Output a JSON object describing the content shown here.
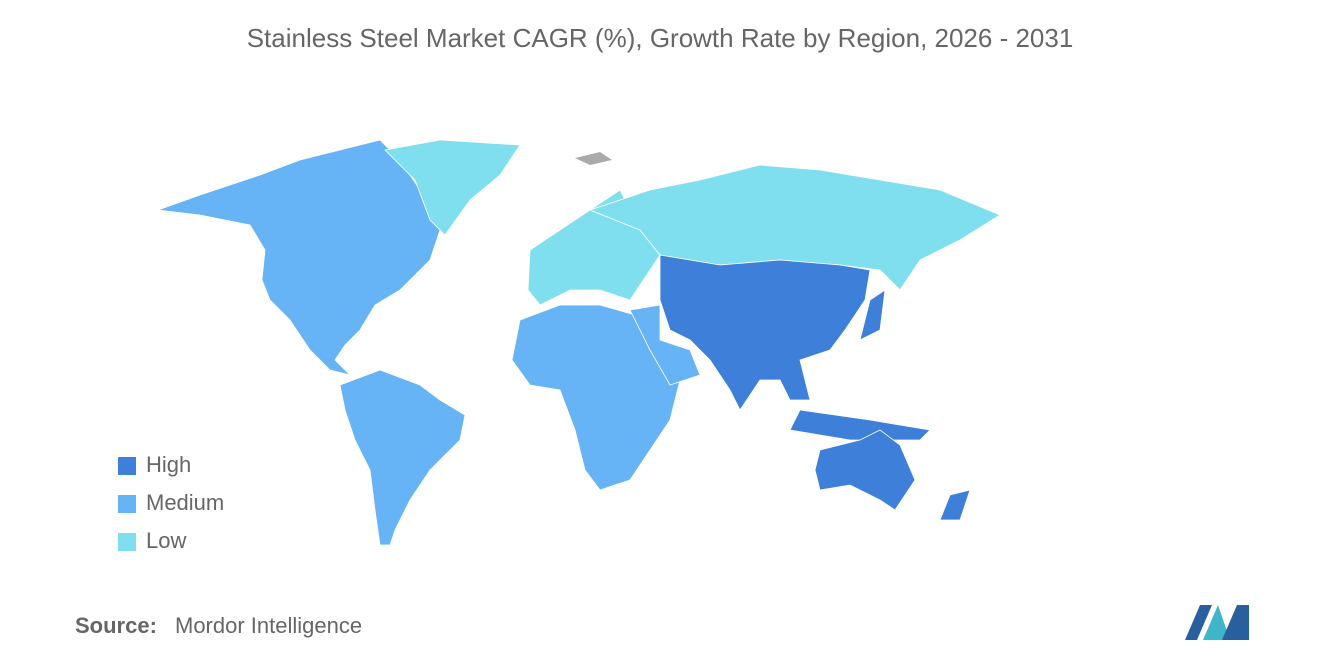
{
  "title": "Stainless Steel Market CAGR (%), Growth Rate by Region, 2026 - 2031",
  "legend": [
    {
      "label": "High",
      "color": "#3d7fd9"
    },
    {
      "label": "Medium",
      "color": "#66b3f5"
    },
    {
      "label": "Low",
      "color": "#7fdfee"
    }
  ],
  "source": {
    "label": "Source:",
    "text": "Mordor Intelligence"
  }
}
